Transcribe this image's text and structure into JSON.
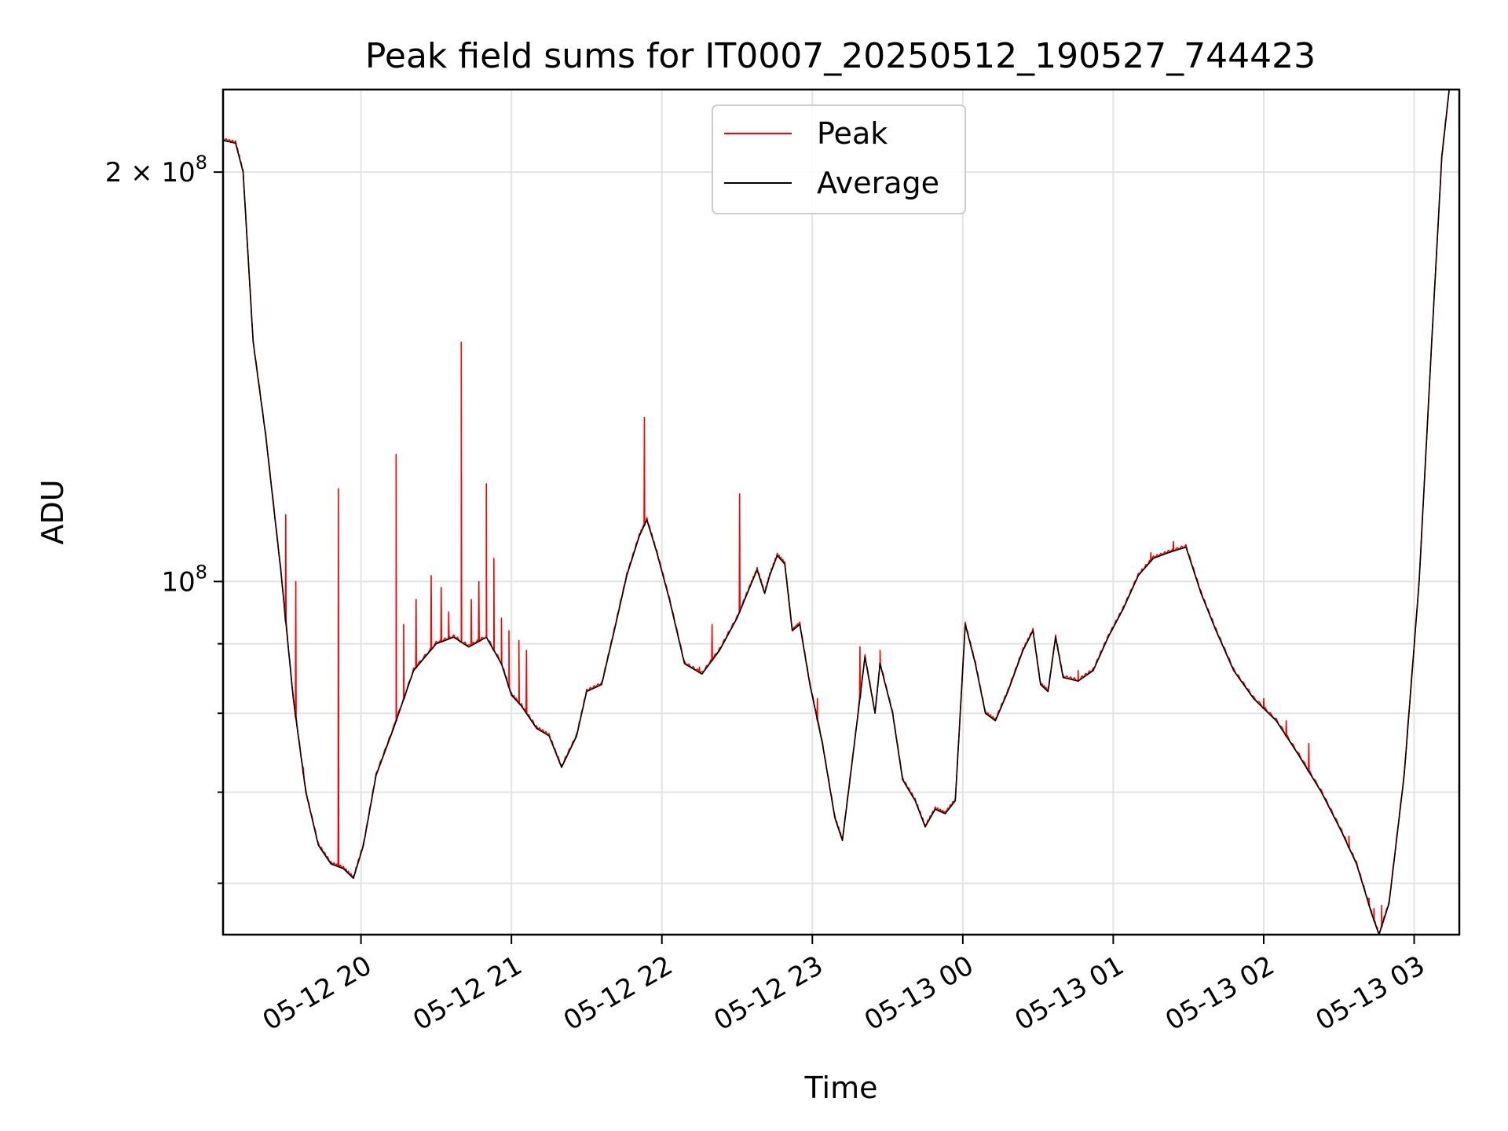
{
  "chart_data": {
    "type": "line",
    "title": "Peak field sums for IT0007_20250512_190527_744423",
    "xlabel": "Time",
    "ylabel": "ADU",
    "yscale": "log",
    "grid": true,
    "legend": "upper-center",
    "colors": {
      "Peak": "#ff0000",
      "Average": "#000000"
    },
    "xlim": [
      "2025-05-12 19:05",
      "2025-05-13 03:18"
    ],
    "ylim": [
      55000000,
      230000000
    ],
    "x_ticks": [
      "05-12 20",
      "05-12 21",
      "05-12 22",
      "05-12 23",
      "05-13 00",
      "05-13 01",
      "05-13 02",
      "05-13 03"
    ],
    "y_tick_labels": [
      {
        "value": 200000000,
        "base": "2 × 10",
        "exp": "8"
      },
      {
        "value": 100000000,
        "base": "10",
        "exp": "8"
      }
    ],
    "y_minor_ticks": [
      60000000,
      70000000,
      80000000,
      90000000
    ],
    "series": [
      {
        "name": "Average",
        "points": [
          [
            "2025-05-12 19:05",
            211000000
          ],
          [
            "2025-05-12 19:10",
            210000000
          ],
          [
            "2025-05-12 19:13",
            200000000
          ],
          [
            "2025-05-12 19:17",
            150000000
          ],
          [
            "2025-05-12 19:22",
            128000000
          ],
          [
            "2025-05-12 19:28",
            102000000
          ],
          [
            "2025-05-12 19:33",
            82000000
          ],
          [
            "2025-05-12 19:38",
            70000000
          ],
          [
            "2025-05-12 19:43",
            64000000
          ],
          [
            "2025-05-12 19:48",
            62000000
          ],
          [
            "2025-05-12 19:53",
            61500000
          ],
          [
            "2025-05-12 19:57",
            60500000
          ],
          [
            "2025-05-12 20:01",
            64000000
          ],
          [
            "2025-05-12 20:06",
            72000000
          ],
          [
            "2025-05-12 20:13",
            78000000
          ],
          [
            "2025-05-12 20:21",
            86000000
          ],
          [
            "2025-05-12 20:30",
            90000000
          ],
          [
            "2025-05-12 20:37",
            91000000
          ],
          [
            "2025-05-12 20:43",
            89500000
          ],
          [
            "2025-05-12 20:50",
            91000000
          ],
          [
            "2025-05-12 20:56",
            87000000
          ],
          [
            "2025-05-12 21:00",
            82500000
          ],
          [
            "2025-05-12 21:04",
            81000000
          ],
          [
            "2025-05-12 21:10",
            78000000
          ],
          [
            "2025-05-12 21:15",
            77000000
          ],
          [
            "2025-05-12 21:20",
            73000000
          ],
          [
            "2025-05-12 21:26",
            77000000
          ],
          [
            "2025-05-12 21:30",
            83000000
          ],
          [
            "2025-05-12 21:36",
            84000000
          ],
          [
            "2025-05-12 21:41",
            92000000
          ],
          [
            "2025-05-12 21:46",
            101000000
          ],
          [
            "2025-05-12 21:51",
            108000000
          ],
          [
            "2025-05-12 21:54",
            111000000
          ],
          [
            "2025-05-12 21:58",
            105000000
          ],
          [
            "2025-05-12 22:03",
            97000000
          ],
          [
            "2025-05-12 22:09",
            87000000
          ],
          [
            "2025-05-12 22:16",
            85500000
          ],
          [
            "2025-05-12 22:23",
            89000000
          ],
          [
            "2025-05-12 22:30",
            94000000
          ],
          [
            "2025-05-12 22:35",
            99000000
          ],
          [
            "2025-05-12 22:38",
            102000000
          ],
          [
            "2025-05-12 22:41",
            98000000
          ],
          [
            "2025-05-12 22:43",
            101000000
          ],
          [
            "2025-05-12 22:46",
            104500000
          ],
          [
            "2025-05-12 22:49",
            103000000
          ],
          [
            "2025-05-12 22:52",
            92000000
          ],
          [
            "2025-05-12 22:55",
            93000000
          ],
          [
            "2025-05-12 22:59",
            84000000
          ],
          [
            "2025-05-12 23:04",
            76000000
          ],
          [
            "2025-05-12 23:09",
            67000000
          ],
          [
            "2025-05-12 23:12",
            64500000
          ],
          [
            "2025-05-12 23:16",
            74000000
          ],
          [
            "2025-05-12 23:21",
            88000000
          ],
          [
            "2025-05-12 23:25",
            80000000
          ],
          [
            "2025-05-12 23:27",
            87000000
          ],
          [
            "2025-05-12 23:32",
            80000000
          ],
          [
            "2025-05-12 23:36",
            71500000
          ],
          [
            "2025-05-12 23:41",
            69000000
          ],
          [
            "2025-05-12 23:45",
            66000000
          ],
          [
            "2025-05-12 23:49",
            68000000
          ],
          [
            "2025-05-12 23:53",
            67500000
          ],
          [
            "2025-05-12 23:57",
            69000000
          ],
          [
            "2025-05-13 00:01",
            93000000
          ],
          [
            "2025-05-13 00:05",
            87000000
          ],
          [
            "2025-05-13 00:09",
            80000000
          ],
          [
            "2025-05-13 00:13",
            79000000
          ],
          [
            "2025-05-13 00:18",
            83000000
          ],
          [
            "2025-05-13 00:24",
            89000000
          ],
          [
            "2025-05-13 00:28",
            92000000
          ],
          [
            "2025-05-13 00:31",
            84000000
          ],
          [
            "2025-05-13 00:34",
            83000000
          ],
          [
            "2025-05-13 00:37",
            91000000
          ],
          [
            "2025-05-13 00:40",
            85000000
          ],
          [
            "2025-05-13 00:46",
            84500000
          ],
          [
            "2025-05-13 00:52",
            86000000
          ],
          [
            "2025-05-13 00:58",
            91000000
          ],
          [
            "2025-05-13 01:04",
            95500000
          ],
          [
            "2025-05-13 01:10",
            101000000
          ],
          [
            "2025-05-13 01:16",
            104000000
          ],
          [
            "2025-05-13 01:22",
            105000000
          ],
          [
            "2025-05-13 01:29",
            106000000
          ],
          [
            "2025-05-13 01:35",
            98000000
          ],
          [
            "2025-05-13 01:41",
            92000000
          ],
          [
            "2025-05-13 01:48",
            86000000
          ],
          [
            "2025-05-13 01:56",
            82000000
          ],
          [
            "2025-05-13 02:05",
            79000000
          ],
          [
            "2025-05-13 02:14",
            74500000
          ],
          [
            "2025-05-13 02:23",
            70000000
          ],
          [
            "2025-05-13 02:31",
            65500000
          ],
          [
            "2025-05-13 02:37",
            62000000
          ],
          [
            "2025-05-13 02:43",
            57000000
          ],
          [
            "2025-05-13 02:46",
            55000000
          ],
          [
            "2025-05-13 02:50",
            58000000
          ],
          [
            "2025-05-13 02:56",
            72000000
          ],
          [
            "2025-05-13 03:02",
            100000000
          ],
          [
            "2025-05-13 03:07",
            150000000
          ],
          [
            "2025-05-13 03:11",
            205000000
          ],
          [
            "2025-05-13 03:14",
            230000000
          ],
          [
            "2025-05-13 03:18",
            230000000
          ]
        ]
      },
      {
        "name": "Peak",
        "spikes": [
          [
            "2025-05-12 19:30",
            112000000
          ],
          [
            "2025-05-12 19:34",
            100000000
          ],
          [
            "2025-05-12 19:37",
            73000000
          ],
          [
            "2025-05-12 19:51",
            117000000
          ],
          [
            "2025-05-12 20:14",
            124000000
          ],
          [
            "2025-05-12 20:17",
            93000000
          ],
          [
            "2025-05-12 20:22",
            97000000
          ],
          [
            "2025-05-12 20:28",
            101000000
          ],
          [
            "2025-05-12 20:32",
            99000000
          ],
          [
            "2025-05-12 20:35",
            95000000
          ],
          [
            "2025-05-12 20:40",
            150000000
          ],
          [
            "2025-05-12 20:44",
            97000000
          ],
          [
            "2025-05-12 20:47",
            100000000
          ],
          [
            "2025-05-12 20:50",
            118000000
          ],
          [
            "2025-05-12 20:53",
            104000000
          ],
          [
            "2025-05-12 20:56",
            94000000
          ],
          [
            "2025-05-12 20:59",
            92000000
          ],
          [
            "2025-05-12 21:03",
            90500000
          ],
          [
            "2025-05-12 21:06",
            89000000
          ],
          [
            "2025-05-12 21:53",
            132000000
          ],
          [
            "2025-05-12 22:15",
            86500000
          ],
          [
            "2025-05-12 22:20",
            93000000
          ],
          [
            "2025-05-12 22:31",
            116000000
          ],
          [
            "2025-05-12 23:02",
            82000000
          ],
          [
            "2025-05-12 23:19",
            89500000
          ],
          [
            "2025-05-12 23:27",
            89000000
          ],
          [
            "2025-05-13 00:46",
            86000000
          ],
          [
            "2025-05-13 01:15",
            105000000
          ],
          [
            "2025-05-13 01:24",
            107000000
          ],
          [
            "2025-05-13 02:00",
            82000000
          ],
          [
            "2025-05-13 02:09",
            79000000
          ],
          [
            "2025-05-13 02:18",
            76000000
          ],
          [
            "2025-05-13 02:34",
            65000000
          ],
          [
            "2025-05-13 02:42",
            58500000
          ],
          [
            "2025-05-13 02:44",
            57500000
          ],
          [
            "2025-05-13 02:47",
            57800000
          ]
        ],
        "points_note_free": true
      }
    ]
  }
}
